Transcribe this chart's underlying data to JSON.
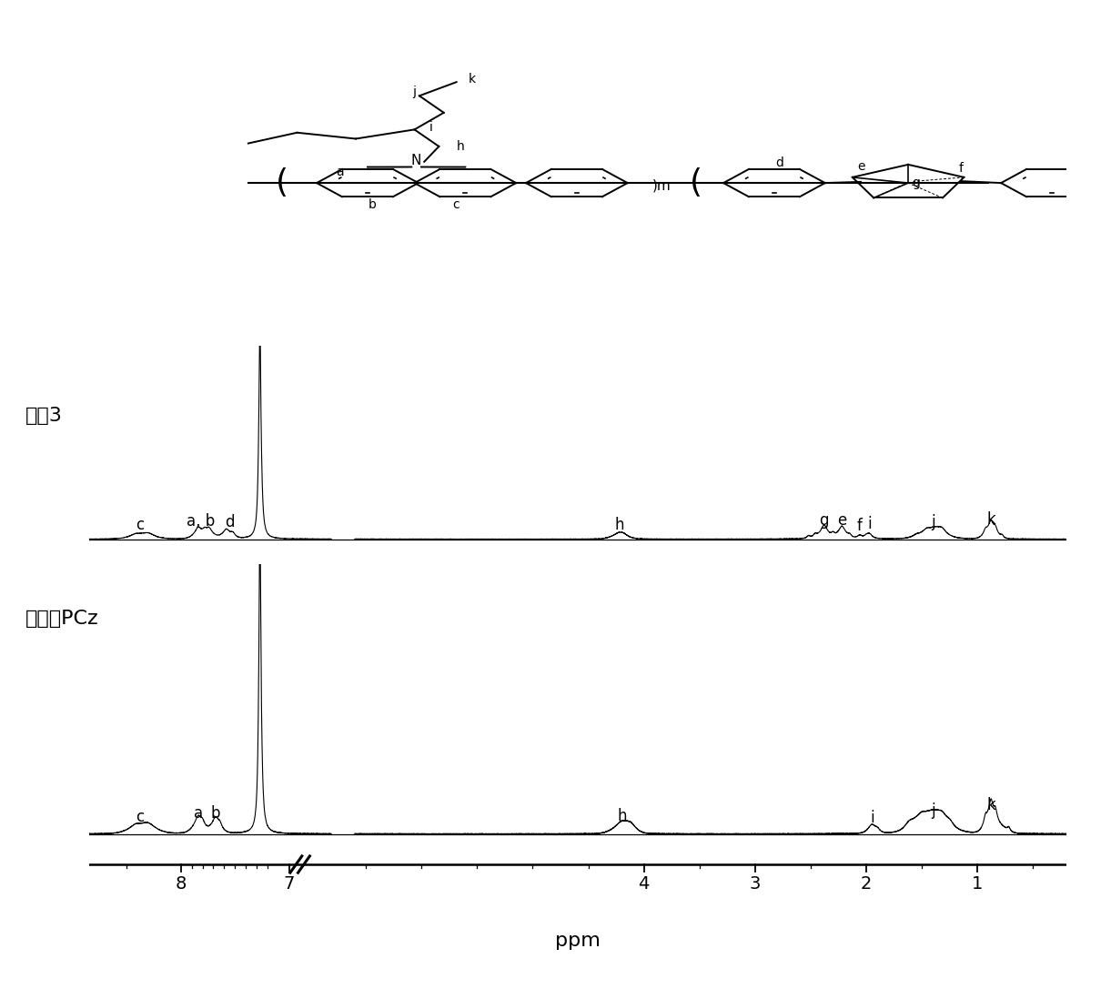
{
  "background_color": "#ffffff",
  "spectrum1_label": "实例3",
  "spectrum2_label": "均聚物PCz",
  "xlabel": "ppm",
  "aromatic_ppm_min": 6.61,
  "aromatic_ppm_max": 8.85,
  "aliphatic_ppm_min": 0.2,
  "aliphatic_ppm_max": 6.6,
  "disp_aromatic_min": 0.0,
  "disp_aromatic_max": 0.248,
  "disp_aliphatic_min": 0.272,
  "disp_aliphatic_max": 1.0,
  "tick_ppms": [
    8,
    7,
    4,
    3,
    2,
    1
  ],
  "minor_tick_ppms": [
    7.5,
    7.2,
    7.3,
    7.4,
    7.6,
    7.7,
    7.8,
    7.9,
    8.5,
    0.5,
    1.5,
    2.5,
    3.5,
    4.5,
    5.0,
    5.5,
    6.0,
    6.5
  ],
  "break_ppm": 6.9
}
